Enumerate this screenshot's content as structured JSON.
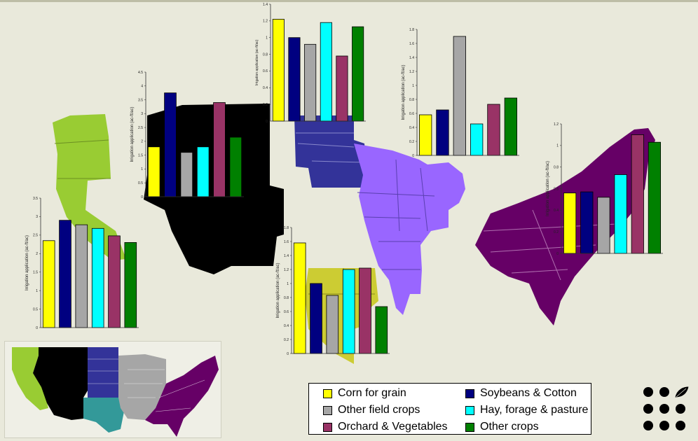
{
  "legend": {
    "items": [
      {
        "label": "Corn for grain",
        "color": "#ffff00"
      },
      {
        "label": "Soybeans & Cotton",
        "color": "#000080"
      },
      {
        "label": "Other field crops",
        "color": "#a6a6a6"
      },
      {
        "label": "Hay, forage & pasture",
        "color": "#00ffff"
      },
      {
        "label": "Orchard & Vegetables",
        "color": "#993366"
      },
      {
        "label": "Other crops",
        "color": "#008000"
      }
    ]
  },
  "region_colors": {
    "pacific": "#99cc33",
    "mountain": "#000000",
    "plains": "#333399",
    "southern_plains": "#339999",
    "midwest": "#9966ff",
    "delta": "#cccc33",
    "east": "#660066"
  },
  "chart_data": [
    {
      "type": "bar",
      "region": "pacific",
      "categories": [
        "Corn for grain",
        "Soybeans & Cotton",
        "Other field crops",
        "Hay, forage & pasture",
        "Orchard & Vegetables",
        "Other crops"
      ],
      "values": [
        2.35,
        2.9,
        2.78,
        2.68,
        2.48,
        2.3
      ],
      "ylabel": "Irrigation application (ac-ft/ac)",
      "ylim": [
        0,
        3.5
      ],
      "yticks": [
        "0",
        "0.5",
        "1",
        "1.5",
        "2",
        "2.5",
        "3",
        "3.5"
      ]
    },
    {
      "type": "bar",
      "region": "mountain",
      "categories": [
        "Corn for grain",
        "Soybeans & Cotton",
        "Other field crops",
        "Hay, forage & pasture",
        "Orchard & Vegetables",
        "Other crops"
      ],
      "values": [
        1.8,
        3.75,
        1.6,
        1.8,
        3.4,
        2.15
      ],
      "ylabel": "Irrigation application (ac-ft/ac)",
      "ylim": [
        0,
        4.5
      ],
      "yticks": [
        "0",
        "0.5",
        "1",
        "1.5",
        "2",
        "2.5",
        "3",
        "3.5",
        "4",
        "4.5"
      ]
    },
    {
      "type": "bar",
      "region": "plains",
      "categories": [
        "Corn for grain",
        "Soybeans & Cotton",
        "Other field crops",
        "Hay, forage & pasture",
        "Orchard & Vegetables",
        "Other crops"
      ],
      "values": [
        1.22,
        1.0,
        0.92,
        1.18,
        0.78,
        1.13
      ],
      "ylabel": "Irrigation application (ac-ft/ac)",
      "ylim": [
        0,
        1.4
      ],
      "yticks": [
        "0",
        "0.2",
        "0.4",
        "0.6",
        "0.8",
        "1",
        "1.2",
        "1.4"
      ]
    },
    {
      "type": "bar",
      "region": "midwest",
      "categories": [
        "Corn for grain",
        "Soybeans & Cotton",
        "Other field crops",
        "Hay, forage & pasture",
        "Orchard & Vegetables",
        "Other crops"
      ],
      "values": [
        0.58,
        0.65,
        1.7,
        0.45,
        0.73,
        0.82
      ],
      "ylabel": "Irrigation application (ac-ft/ac)",
      "ylim": [
        0,
        1.8
      ],
      "yticks": [
        "0",
        "0.2",
        "0.4",
        "0.6",
        "0.8",
        "1",
        "1.2",
        "1.4",
        "1.6",
        "1.8"
      ]
    },
    {
      "type": "bar",
      "region": "delta",
      "categories": [
        "Corn for grain",
        "Soybeans & Cotton",
        "Other field crops",
        "Hay, forage & pasture",
        "Orchard & Vegetables",
        "Other crops"
      ],
      "values": [
        1.58,
        1.0,
        0.83,
        1.2,
        1.22,
        0.67
      ],
      "ylabel": "Irrigation application (ac-ft/ac)",
      "ylim": [
        0,
        1.8
      ],
      "yticks": [
        "0",
        "0.2",
        "0.4",
        "0.6",
        "0.8",
        "1",
        "1.2",
        "1.4",
        "1.6",
        "1.8"
      ]
    },
    {
      "type": "bar",
      "region": "east",
      "categories": [
        "Corn for grain",
        "Soybeans & Cotton",
        "Other field crops",
        "Hay, forage & pasture",
        "Orchard & Vegetables",
        "Other crops"
      ],
      "values": [
        0.56,
        0.57,
        0.52,
        0.73,
        1.1,
        1.03
      ],
      "ylabel": "Irrigation application (ac-ft/ac)",
      "ylim": [
        0,
        1.2
      ],
      "yticks": [
        "0",
        "0.2",
        "0.4",
        "0.6",
        "0.8",
        "1",
        "1.2"
      ]
    }
  ]
}
